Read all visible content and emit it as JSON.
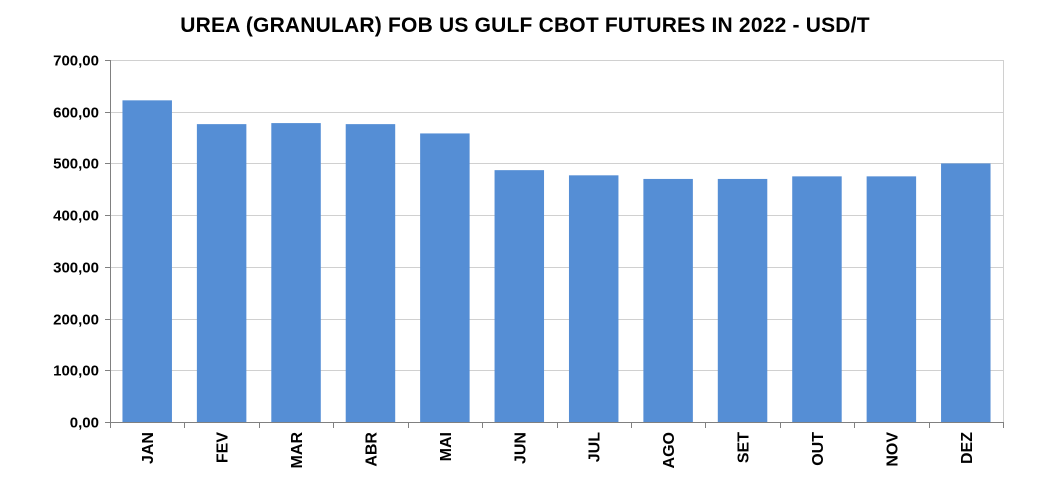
{
  "chart_data": {
    "type": "bar",
    "title": "UREA (GRANULAR) FOB US GULF CBOT FUTURES IN 2022 - USD/T",
    "xlabel": "",
    "ylabel": "",
    "categories": [
      "JAN",
      "FEV",
      "MAR",
      "ABR",
      "MAI",
      "JUN",
      "JUL",
      "AGO",
      "SET",
      "OUT",
      "NOV",
      "DEZ"
    ],
    "values": [
      622,
      576,
      578,
      576,
      558,
      487,
      477,
      470,
      470,
      475,
      475,
      500
    ],
    "ylim": [
      0,
      700
    ],
    "yticks": [
      0,
      100,
      200,
      300,
      400,
      500,
      600,
      700
    ],
    "ytick_labels": [
      "0,00",
      "100,00",
      "200,00",
      "300,00",
      "400,00",
      "500,00",
      "600,00",
      "700,00"
    ],
    "grid": true,
    "legend": "none",
    "bar_color": "#558ed5",
    "grid_color": "#d0d0d0",
    "axis_color": "#808080"
  }
}
